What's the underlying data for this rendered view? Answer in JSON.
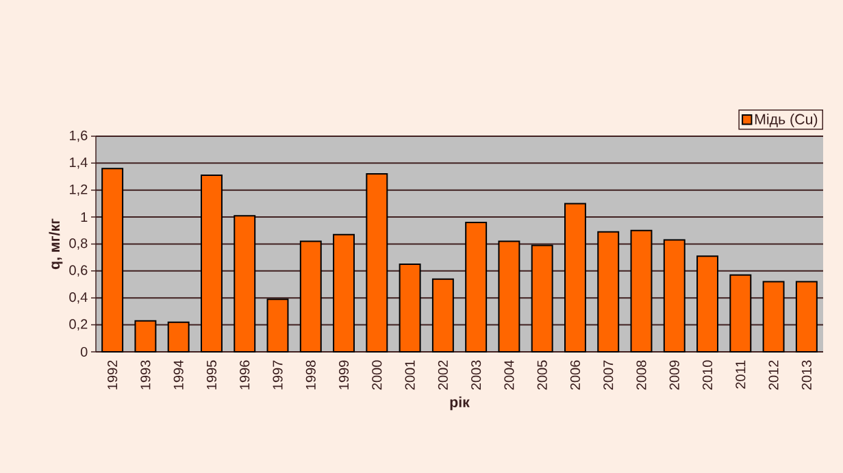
{
  "chart_data": {
    "type": "bar",
    "xlabel": "рік",
    "ylabel": "q,  мг/кг",
    "categories": [
      "1992",
      "1993",
      "1994",
      "1995",
      "1996",
      "1997",
      "1998",
      "1999",
      "2000",
      "2001",
      "2002",
      "2003",
      "2004",
      "2005",
      "2006",
      "2007",
      "2008",
      "2009",
      "2010",
      "2011",
      "2012",
      "2013"
    ],
    "series": [
      {
        "name": "Мідь (Cu)",
        "color": "#ff6600",
        "values": [
          1.36,
          0.23,
          0.22,
          1.31,
          1.01,
          0.39,
          0.82,
          0.87,
          1.32,
          0.65,
          0.54,
          0.96,
          0.82,
          0.79,
          1.1,
          0.89,
          0.9,
          0.83,
          0.71,
          0.57,
          0.52,
          0.52
        ]
      }
    ],
    "ylim": [
      0,
      1.6
    ],
    "yticks": [
      0,
      {
        "value": 0.2,
        "label": "0,2"
      },
      {
        "value": 0.4,
        "label": "0,4"
      },
      {
        "value": 0.6,
        "label": "0,6"
      },
      {
        "value": 0.8,
        "label": "0,8"
      },
      1,
      {
        "value": 1.2,
        "label": "1,2"
      },
      {
        "value": 1.4,
        "label": "1,4"
      },
      {
        "value": 1.6,
        "label": "1,6"
      }
    ],
    "grid": "y",
    "legend": "top right"
  }
}
